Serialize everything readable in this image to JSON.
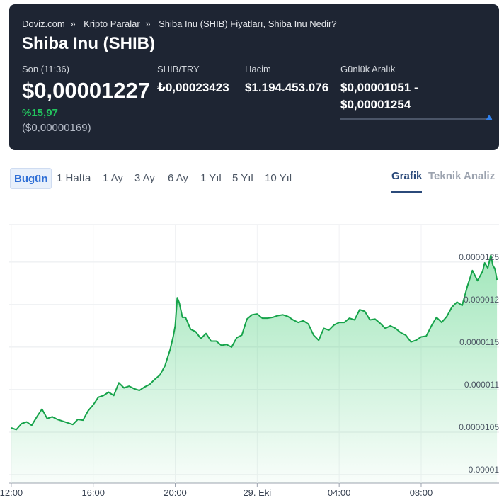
{
  "breadcrumb": {
    "items": [
      "Doviz.com",
      "Kripto Paralar",
      "Shiba Inu (SHIB) Fiyatları, Shiba Inu Nedir?"
    ],
    "separator": "»"
  },
  "title": "Shiba Inu (SHIB)",
  "stats": {
    "last_label": "Son (11:36)",
    "last_price": "$0,00001227",
    "change_percent": "%15,97",
    "change_abs": "($0,00000169)",
    "try_label": "SHIB/TRY",
    "try_value": "₺0,00023423",
    "volume_label": "Hacim",
    "volume_value": "$1.194.453.076",
    "range_label": "Günlük Aralık",
    "range_low": "$0,00001051 -",
    "range_high": "$0,00001254",
    "range_position": 0.98
  },
  "periods": {
    "selected": "Bugün",
    "items": [
      "Bugün",
      "1 Hafta",
      "1 Ay",
      "3 Ay",
      "6 Ay",
      "1 Yıl",
      "5 Yıl",
      "10 Yıl"
    ]
  },
  "view_tabs": {
    "selected": "Grafik",
    "items": [
      "Grafik",
      "Teknik Analiz"
    ]
  },
  "colors": {
    "header_bg": "#1e2533",
    "positive": "#22c55e",
    "line": "#16a34a",
    "accent": "#2f6fd6"
  },
  "chart_data": {
    "type": "area",
    "x_tick_labels": [
      "12:00",
      "16:00",
      "20:00",
      "29. Eki",
      "04:00",
      "08:00"
    ],
    "x_ticks_hours": [
      0,
      4,
      8,
      12,
      16,
      20
    ],
    "y_tick_labels": [
      "0.0000125",
      "0.000012",
      "0.0000115",
      "0.000011",
      "0.0000105",
      "0.00001"
    ],
    "y_ticks": [
      1.25e-05,
      1.2e-05,
      1.15e-05,
      1.1e-05,
      1.05e-05,
      1e-05
    ],
    "ylim": [
      9.9e-06,
      1.294e-05
    ],
    "xlim_hours": [
      -0.1,
      23.8
    ],
    "grid": true,
    "series": [
      {
        "x_hours": [
          0,
          0.25,
          0.5,
          0.75,
          1,
          1.25,
          1.5,
          1.75,
          2,
          2.25,
          2.5,
          2.75,
          3,
          3.25,
          3.5,
          3.75,
          4,
          4.25,
          4.5,
          4.75,
          5,
          5.25,
          5.5,
          5.75,
          6,
          6.25,
          6.5,
          6.75,
          7,
          7.25,
          7.5,
          7.75,
          7.9,
          8,
          8.1,
          8.2,
          8.35,
          8.5,
          8.75,
          9,
          9.25,
          9.5,
          9.75,
          10,
          10.25,
          10.5,
          10.75,
          11,
          11.25,
          11.5,
          11.75,
          12,
          12.25,
          12.5,
          12.75,
          13,
          13.25,
          13.5,
          13.75,
          14,
          14.25,
          14.5,
          14.75,
          15,
          15.25,
          15.5,
          15.75,
          16,
          16.25,
          16.5,
          16.75,
          17,
          17.25,
          17.5,
          17.75,
          18,
          18.25,
          18.5,
          18.75,
          19,
          19.25,
          19.5,
          19.75,
          20,
          20.25,
          20.5,
          20.75,
          21,
          21.25,
          21.5,
          21.75,
          22,
          22.25,
          22.5,
          22.75,
          23,
          23.1,
          23.25,
          23.4,
          23.5,
          23.6,
          23.7
        ],
        "y": [
          1.055e-05,
          1.053e-05,
          1.06e-05,
          1.062e-05,
          1.058e-05,
          1.068e-05,
          1.077e-05,
          1.066e-05,
          1.068e-05,
          1.065e-05,
          1.063e-05,
          1.061e-05,
          1.059e-05,
          1.065e-05,
          1.064e-05,
          1.075e-05,
          1.082e-05,
          1.091e-05,
          1.093e-05,
          1.097e-05,
          1.093e-05,
          1.108e-05,
          1.102e-05,
          1.104e-05,
          1.101e-05,
          1.099e-05,
          1.103e-05,
          1.106e-05,
          1.112e-05,
          1.117e-05,
          1.128e-05,
          1.147e-05,
          1.162e-05,
          1.175e-05,
          1.208e-05,
          1.202e-05,
          1.185e-05,
          1.185e-05,
          1.171e-05,
          1.168e-05,
          1.16e-05,
          1.166e-05,
          1.157e-05,
          1.157e-05,
          1.152e-05,
          1.153e-05,
          1.15e-05,
          1.161e-05,
          1.164e-05,
          1.183e-05,
          1.188e-05,
          1.189e-05,
          1.184e-05,
          1.184e-05,
          1.185e-05,
          1.187e-05,
          1.188e-05,
          1.186e-05,
          1.182e-05,
          1.179e-05,
          1.181e-05,
          1.177e-05,
          1.164e-05,
          1.158e-05,
          1.172e-05,
          1.17e-05,
          1.176e-05,
          1.179e-05,
          1.179e-05,
          1.184e-05,
          1.182e-05,
          1.194e-05,
          1.192e-05,
          1.182e-05,
          1.183e-05,
          1.178e-05,
          1.172e-05,
          1.175e-05,
          1.172e-05,
          1.167e-05,
          1.164e-05,
          1.156e-05,
          1.158e-05,
          1.162e-05,
          1.163e-05,
          1.175e-05,
          1.185e-05,
          1.179e-05,
          1.186e-05,
          1.197e-05,
          1.203e-05,
          1.199e-05,
          1.221e-05,
          1.24e-05,
          1.228e-05,
          1.239e-05,
          1.249e-05,
          1.243e-05,
          1.258e-05,
          1.246e-05,
          1.242e-05,
          1.229e-05
        ]
      }
    ]
  }
}
